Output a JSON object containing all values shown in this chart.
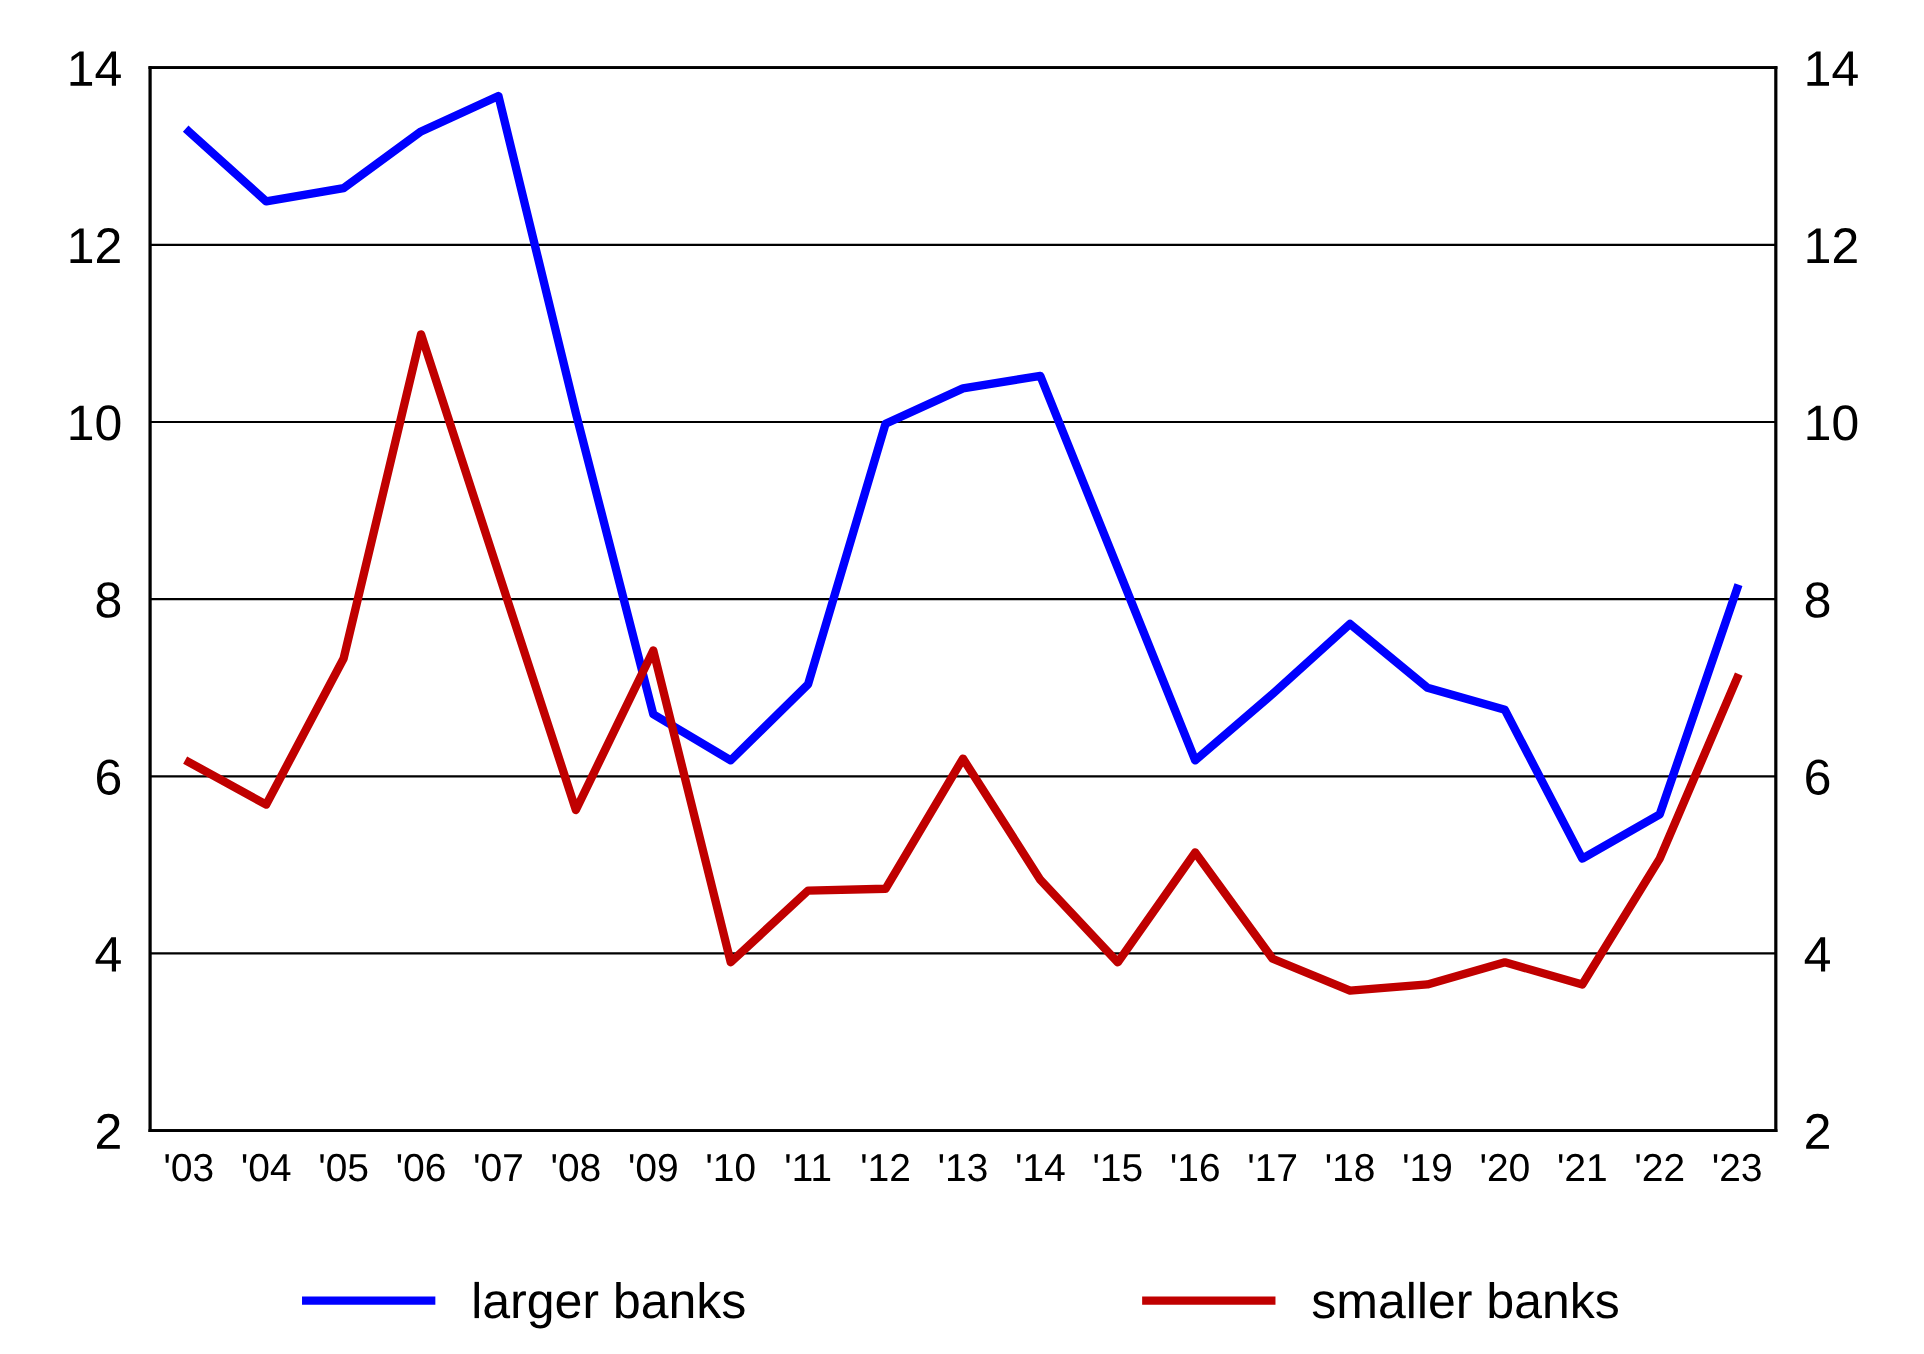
{
  "chart_data": {
    "type": "line",
    "categories": [
      "'03",
      "'04",
      "'05",
      "'06",
      "'07",
      "'08",
      "'09",
      "'10",
      "'11",
      "'12",
      "'13",
      "'14",
      "'15",
      "'16",
      "'17",
      "'18",
      "'19",
      "'20",
      "'21",
      "'22",
      "'23"
    ],
    "series": [
      {
        "name": "larger banks",
        "color": "#0000ff",
        "values": [
          13.28,
          12.49,
          12.64,
          13.28,
          13.68,
          10.1,
          6.7,
          6.18,
          7.04,
          9.98,
          10.38,
          10.52,
          8.35,
          6.18,
          6.93,
          7.72,
          7.0,
          6.75,
          5.07,
          5.57,
          8.12
        ]
      },
      {
        "name": "smaller banks",
        "color": "#c00000",
        "values": [
          6.16,
          5.68,
          7.33,
          10.99,
          8.3,
          5.62,
          7.42,
          3.9,
          4.71,
          4.73,
          6.2,
          4.83,
          3.9,
          5.14,
          3.94,
          3.58,
          3.65,
          3.9,
          3.65,
          5.07,
          7.11
        ]
      }
    ],
    "ylim": [
      2,
      14
    ],
    "yticks": [
      2,
      4,
      6,
      8,
      10,
      12,
      14
    ],
    "y2lim": [
      2,
      14
    ],
    "y2ticks": [
      2,
      4,
      6,
      8,
      10,
      12,
      14
    ],
    "grid": "y",
    "legend": "bottom",
    "marker": "none",
    "line_style": "solid"
  }
}
